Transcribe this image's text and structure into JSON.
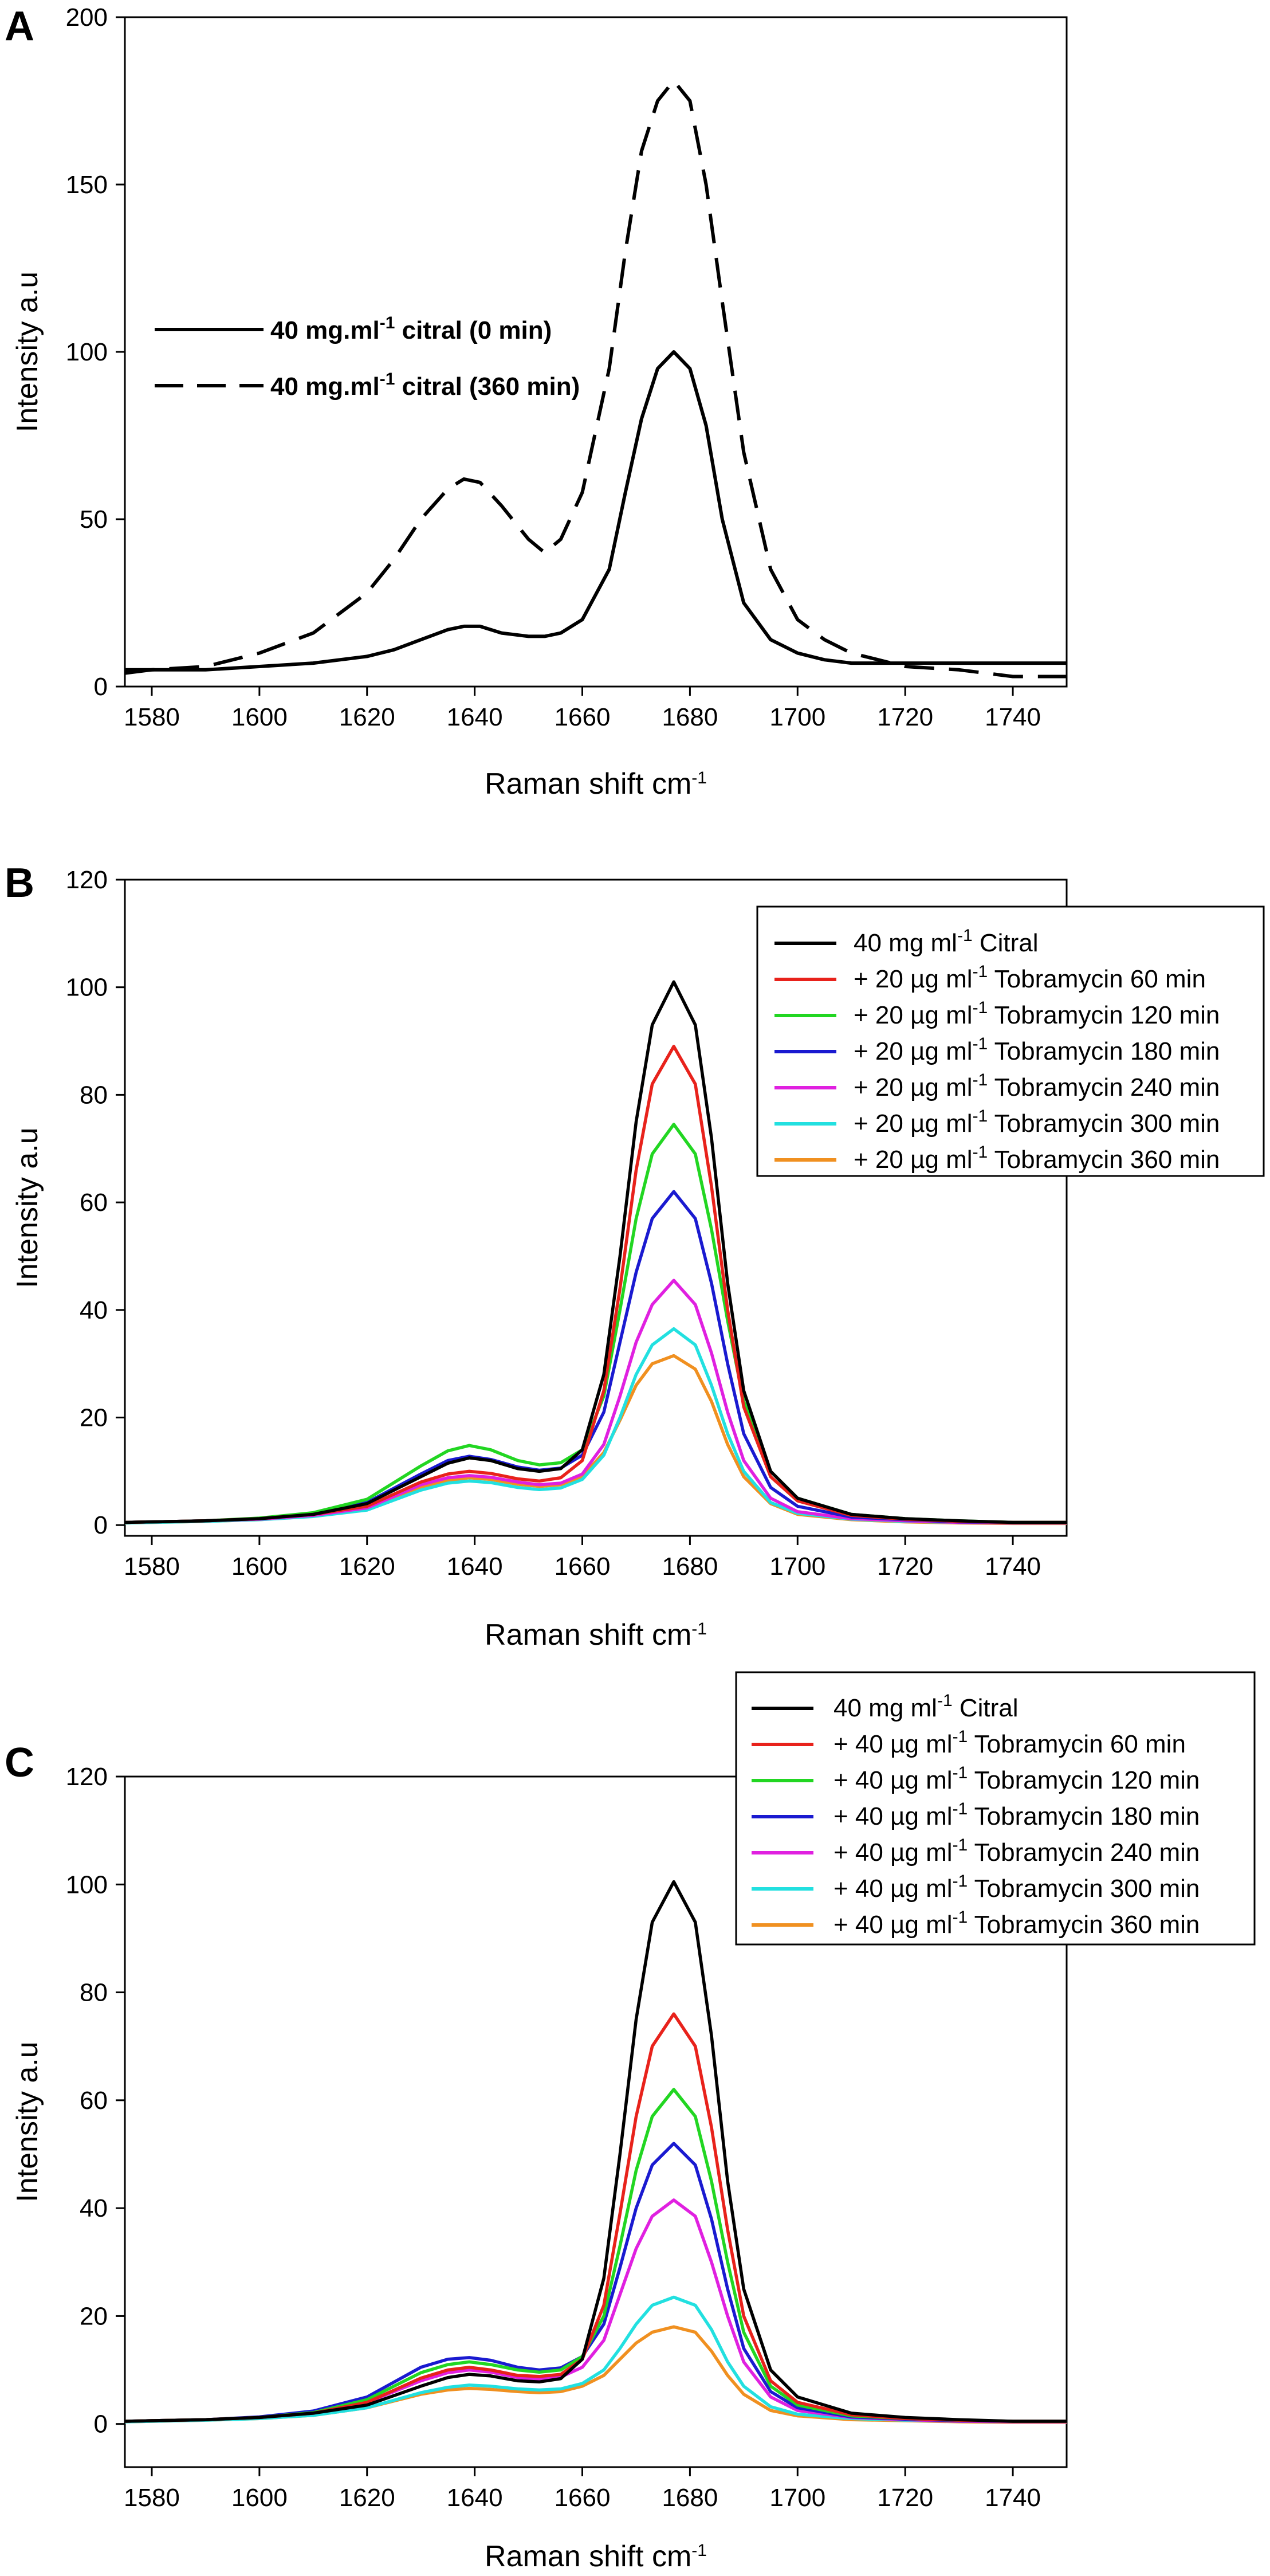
{
  "chart_data": [
    {
      "panel": "A",
      "type": "line",
      "xlabel": "Raman shift cm",
      "xlabel_sup": "-1",
      "ylabel": "Intensity a.u",
      "xlim": [
        1575,
        1750
      ],
      "ylim": [
        0,
        200
      ],
      "xticks": [
        1580,
        1600,
        1620,
        1640,
        1660,
        1680,
        1700,
        1720,
        1740
      ],
      "yticks": [
        0,
        50,
        100,
        150,
        200
      ],
      "legend_position": "left-middle",
      "x": [
        1575,
        1580,
        1590,
        1600,
        1610,
        1620,
        1625,
        1630,
        1635,
        1638,
        1641,
        1645,
        1650,
        1653,
        1656,
        1660,
        1665,
        1668,
        1671,
        1674,
        1677,
        1680,
        1683,
        1686,
        1690,
        1695,
        1700,
        1705,
        1710,
        1720,
        1730,
        1740,
        1750
      ],
      "series": [
        {
          "name": "40 mg.ml",
          "name_sup": "-1",
          "name_tail": " citral (0 min)",
          "color": "#000000",
          "dash": "solid",
          "values": [
            5,
            5,
            5,
            6,
            7,
            9,
            11,
            14,
            17,
            18,
            18,
            16,
            15,
            15,
            16,
            20,
            35,
            58,
            80,
            95,
            100,
            95,
            78,
            50,
            25,
            14,
            10,
            8,
            7,
            7,
            7,
            7,
            7
          ]
        },
        {
          "name": "40 mg.ml",
          "name_sup": "-1",
          "name_tail": " citral (360 min)",
          "color": "#000000",
          "dash": "dashed",
          "values": [
            4,
            5,
            6,
            10,
            16,
            28,
            38,
            50,
            59,
            62,
            61,
            54,
            44,
            40,
            44,
            58,
            95,
            130,
            160,
            175,
            181,
            175,
            150,
            115,
            70,
            35,
            20,
            14,
            10,
            6,
            5,
            3,
            3
          ]
        }
      ]
    },
    {
      "panel": "B",
      "type": "line",
      "xlabel": "Raman shift cm",
      "xlabel_sup": "-1",
      "ylabel": "Intensity a.u",
      "xlim": [
        1575,
        1750
      ],
      "ylim": [
        -2,
        120
      ],
      "xticks": [
        1580,
        1600,
        1620,
        1640,
        1660,
        1680,
        1700,
        1720,
        1740
      ],
      "yticks": [
        0,
        20,
        40,
        60,
        80,
        100,
        120
      ],
      "legend_position": "top-right",
      "x": [
        1575,
        1580,
        1590,
        1600,
        1610,
        1620,
        1630,
        1635,
        1639,
        1643,
        1648,
        1652,
        1656,
        1660,
        1664,
        1667,
        1670,
        1673,
        1677,
        1681,
        1684,
        1687,
        1690,
        1695,
        1700,
        1710,
        1720,
        1730,
        1740,
        1750
      ],
      "series": [
        {
          "name": "40 mg ml",
          "name_sup": "-1",
          "name_tail": " Citral",
          "color": "#000000",
          "values": [
            0.5,
            0.6,
            0.8,
            1.2,
            2.0,
            4.0,
            9.0,
            11.5,
            12.5,
            12.0,
            10.5,
            10.0,
            10.5,
            14.0,
            28.0,
            50.0,
            75.0,
            93.0,
            101.0,
            93.0,
            72.0,
            45.0,
            25.0,
            10.0,
            5.0,
            2.0,
            1.2,
            0.8,
            0.5,
            0.5
          ]
        },
        {
          "name": "+ 20 µg ml",
          "name_sup": "-1",
          "name_tail": " Tobramycin 60 min",
          "color": "#e8221b",
          "values": [
            0.5,
            0.6,
            0.8,
            1.2,
            2.0,
            3.5,
            8.0,
            9.5,
            10.0,
            9.6,
            8.6,
            8.2,
            8.8,
            12.0,
            25.0,
            44.0,
            66.0,
            82.0,
            89.0,
            82.0,
            63.0,
            40.0,
            22.0,
            9.0,
            4.5,
            1.8,
            1.1,
            0.7,
            0.5,
            0.5
          ]
        },
        {
          "name": "+ 20 µg ml",
          "name_sup": "-1",
          "name_tail": " Tobramycin 120 min",
          "color": "#22d622",
          "values": [
            0.5,
            0.6,
            0.8,
            1.3,
            2.3,
            4.8,
            11.0,
            13.8,
            14.8,
            14.0,
            12.0,
            11.2,
            11.6,
            14.0,
            24.0,
            40.0,
            57.0,
            69.0,
            74.5,
            69.0,
            55.0,
            38.0,
            23.0,
            10.0,
            5.0,
            2.0,
            1.2,
            0.8,
            0.5,
            0.5
          ]
        },
        {
          "name": "+ 20 µg ml",
          "name_sup": "-1",
          "name_tail": " Tobramycin 180 min",
          "color": "#1a1ad0",
          "values": [
            0.5,
            0.6,
            0.8,
            1.2,
            2.1,
            4.2,
            9.5,
            12.0,
            12.8,
            12.2,
            10.8,
            10.2,
            10.6,
            13.0,
            21.0,
            34.0,
            47.0,
            57.0,
            62.0,
            57.0,
            45.0,
            30.0,
            17.0,
            7.0,
            3.5,
            1.5,
            1.0,
            0.6,
            0.5,
            0.5
          ]
        },
        {
          "name": "+ 20 µg ml",
          "name_sup": "-1",
          "name_tail": " Tobramycin 240 min",
          "color": "#e020e0",
          "values": [
            0.5,
            0.6,
            0.8,
            1.1,
            1.8,
            3.2,
            7.5,
            8.8,
            9.2,
            8.9,
            8.0,
            7.5,
            7.8,
            9.5,
            15.0,
            24.0,
            34.0,
            41.0,
            45.5,
            41.0,
            32.0,
            21.0,
            12.0,
            5.0,
            2.5,
            1.2,
            0.8,
            0.5,
            0.4,
            0.4
          ]
        },
        {
          "name": "+ 20 µg ml",
          "name_sup": "-1",
          "name_tail": " Tobramycin 300 min",
          "color": "#22e0e0",
          "values": [
            0.4,
            0.5,
            0.7,
            1.0,
            1.6,
            2.8,
            6.5,
            7.8,
            8.2,
            7.9,
            7.0,
            6.6,
            6.9,
            8.5,
            13.0,
            20.0,
            28.0,
            33.5,
            36.5,
            33.5,
            26.0,
            17.0,
            10.0,
            4.2,
            2.2,
            1.1,
            0.7,
            0.5,
            0.4,
            0.4
          ]
        },
        {
          "name": "+ 20 µg ml",
          "name_sup": "-1",
          "name_tail": " Tobramycin 360 min",
          "color": "#f09020",
          "values": [
            0.4,
            0.5,
            0.7,
            1.0,
            1.7,
            3.0,
            7.0,
            8.3,
            8.8,
            8.5,
            7.6,
            7.2,
            7.5,
            9.0,
            13.5,
            19.5,
            26.0,
            30.0,
            31.5,
            29.0,
            23.0,
            15.0,
            9.0,
            4.0,
            2.0,
            1.0,
            0.6,
            0.4,
            0.3,
            0.3
          ]
        }
      ],
      "legend": [
        {
          "pre": "40 mg ml",
          "sup": "-1",
          "post": " Citral",
          "color": "#000000"
        },
        {
          "pre": "+ 20 µg ml",
          "sup": "-1",
          "post": " Tobramycin 60 min",
          "color": "#e8221b"
        },
        {
          "pre": "+ 20 µg ml",
          "sup": "-1",
          "post": " Tobramycin 120 min",
          "color": "#22d622"
        },
        {
          "pre": "+ 20 µg ml",
          "sup": "-1",
          "post": " Tobramycin 180 min",
          "color": "#1a1ad0"
        },
        {
          "pre": "+ 20 µg ml",
          "sup": "-1",
          "post": " Tobramycin 240 min",
          "color": "#e020e0"
        },
        {
          "pre": "+ 20 µg ml",
          "sup": "-1",
          "post": " Tobramycin 300 min",
          "color": "#22e0e0"
        },
        {
          "pre": "+ 20 µg ml",
          "sup": "-1",
          "post": " Tobramycin 360 min",
          "color": "#f09020"
        }
      ]
    },
    {
      "panel": "C",
      "type": "line",
      "xlabel": "Raman shift cm",
      "xlabel_sup": "-1",
      "ylabel": "Intensity a.u",
      "xlim": [
        1575,
        1750
      ],
      "ylim": [
        -8,
        120
      ],
      "xticks": [
        1580,
        1600,
        1620,
        1640,
        1660,
        1680,
        1700,
        1720,
        1740
      ],
      "yticks": [
        0,
        20,
        40,
        60,
        80,
        100,
        120
      ],
      "legend_position": "top-right",
      "x": [
        1575,
        1580,
        1590,
        1600,
        1610,
        1620,
        1630,
        1635,
        1639,
        1643,
        1648,
        1652,
        1656,
        1660,
        1664,
        1667,
        1670,
        1673,
        1677,
        1681,
        1684,
        1687,
        1690,
        1695,
        1700,
        1710,
        1720,
        1730,
        1740,
        1750
      ],
      "series": [
        {
          "name": "40 mg ml",
          "name_sup": "-1",
          "name_tail": " Citral",
          "color": "#000000",
          "values": [
            0.5,
            0.6,
            0.8,
            1.2,
            2.0,
            3.5,
            7.0,
            8.6,
            9.2,
            8.9,
            8.0,
            7.8,
            8.4,
            12.0,
            27.0,
            50.0,
            75.0,
            93.0,
            100.5,
            93.0,
            72.0,
            45.0,
            25.0,
            10.0,
            5.0,
            2.0,
            1.2,
            0.8,
            0.5,
            0.5
          ]
        },
        {
          "name": "+ 40 µg ml",
          "name_sup": "-1",
          "name_tail": " Tobramycin 60 min",
          "color": "#e8221b",
          "values": [
            0.5,
            0.6,
            0.8,
            1.2,
            2.0,
            4.0,
            8.5,
            10.0,
            10.5,
            10.0,
            9.0,
            8.8,
            9.2,
            12.0,
            22.0,
            39.0,
            57.0,
            70.0,
            76.0,
            70.0,
            55.0,
            36.0,
            20.0,
            8.0,
            4.0,
            1.7,
            1.0,
            0.7,
            0.5,
            0.5
          ]
        },
        {
          "name": "+ 40 µg ml",
          "name_sup": "-1",
          "name_tail": " Tobramycin 120 min",
          "color": "#22d622",
          "values": [
            0.5,
            0.6,
            0.8,
            1.2,
            2.1,
            4.5,
            9.5,
            11.0,
            11.5,
            11.0,
            10.0,
            9.6,
            10.0,
            12.5,
            20.0,
            33.0,
            47.0,
            57.0,
            62.0,
            57.0,
            45.0,
            30.0,
            17.0,
            7.0,
            3.5,
            1.5,
            1.0,
            0.7,
            0.5,
            0.5
          ]
        },
        {
          "name": "+ 40 µg ml",
          "name_sup": "-1",
          "name_tail": " Tobramycin 180 min",
          "color": "#1a1ad0",
          "values": [
            0.5,
            0.6,
            0.8,
            1.3,
            2.4,
            5.0,
            10.5,
            12.0,
            12.3,
            11.8,
            10.5,
            10.0,
            10.4,
            12.5,
            18.5,
            29.0,
            40.0,
            48.0,
            52.0,
            48.0,
            38.0,
            25.0,
            14.0,
            6.0,
            3.0,
            1.3,
            0.9,
            0.6,
            0.5,
            0.5
          ]
        },
        {
          "name": "+ 40 µg ml",
          "name_sup": "-1",
          "name_tail": " Tobramycin 240 min",
          "color": "#e020e0",
          "values": [
            0.5,
            0.6,
            0.8,
            1.2,
            2.0,
            4.0,
            8.0,
            9.5,
            10.0,
            9.6,
            8.6,
            8.3,
            8.7,
            10.5,
            15.5,
            24.0,
            32.5,
            38.5,
            41.5,
            38.5,
            30.0,
            20.0,
            11.5,
            5.0,
            2.5,
            1.2,
            0.8,
            0.5,
            0.4,
            0.4
          ]
        },
        {
          "name": "+ 40 µg ml",
          "name_sup": "-1",
          "name_tail": " Tobramycin 300 min",
          "color": "#22e0e0",
          "values": [
            0.4,
            0.5,
            0.7,
            1.0,
            1.6,
            3.0,
            5.8,
            6.8,
            7.2,
            7.0,
            6.5,
            6.3,
            6.5,
            7.5,
            10.0,
            14.0,
            18.5,
            22.0,
            23.5,
            22.0,
            17.5,
            11.5,
            7.0,
            3.2,
            1.8,
            1.0,
            0.7,
            0.5,
            0.4,
            0.4
          ]
        },
        {
          "name": "+ 40 µg ml",
          "name_sup": "-1",
          "name_tail": " Tobramycin 360 min",
          "color": "#f09020",
          "values": [
            0.4,
            0.5,
            0.7,
            1.0,
            1.6,
            3.0,
            5.5,
            6.3,
            6.6,
            6.4,
            6.0,
            5.8,
            6.0,
            7.0,
            9.0,
            12.0,
            15.0,
            17.0,
            18.0,
            17.0,
            13.5,
            9.0,
            5.5,
            2.5,
            1.5,
            0.8,
            0.6,
            0.4,
            0.3,
            0.3
          ]
        }
      ],
      "legend": [
        {
          "pre": "40 mg ml",
          "sup": "-1",
          "post": " Citral",
          "color": "#000000"
        },
        {
          "pre": "+ 40 µg ml",
          "sup": "-1",
          "post": " Tobramycin 60 min",
          "color": "#e8221b"
        },
        {
          "pre": "+ 40 µg ml",
          "sup": "-1",
          "post": " Tobramycin 120 min",
          "color": "#22d622"
        },
        {
          "pre": "+ 40 µg ml",
          "sup": "-1",
          "post": " Tobramycin 180 min",
          "color": "#1a1ad0"
        },
        {
          "pre": "+ 40 µg ml",
          "sup": "-1",
          "post": " Tobramycin 240 min",
          "color": "#e020e0"
        },
        {
          "pre": "+ 40 µg ml",
          "sup": "-1",
          "post": " Tobramycin 300 min",
          "color": "#22e0e0"
        },
        {
          "pre": "+ 40 µg ml",
          "sup": "-1",
          "post": " Tobramycin 360 min",
          "color": "#f09020"
        }
      ]
    }
  ]
}
